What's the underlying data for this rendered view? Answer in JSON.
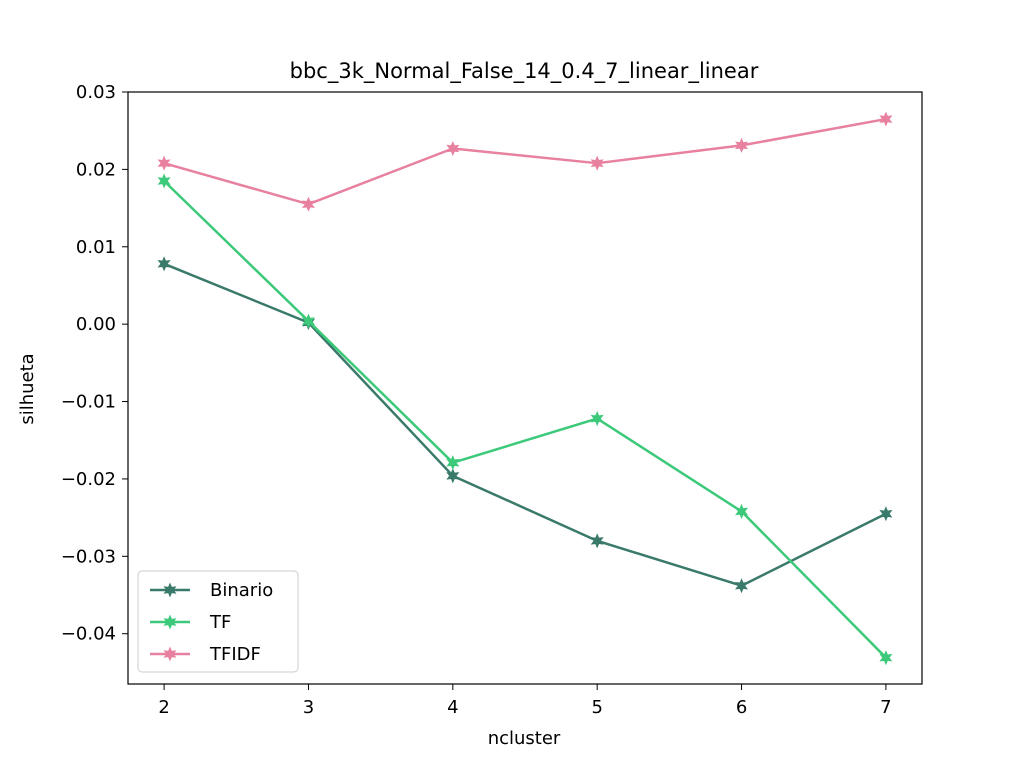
{
  "chart_data": {
    "type": "line",
    "title": "bbc_3k_Normal_False_14_0.4_7_linear_linear",
    "xlabel": "ncluster",
    "ylabel": "silhueta",
    "x": [
      2,
      3,
      4,
      5,
      6,
      7
    ],
    "xlim": [
      1.75,
      7.25
    ],
    "ylim": [
      -0.0465,
      0.03
    ],
    "xticks": [
      2,
      3,
      4,
      5,
      6,
      7
    ],
    "yticks": [
      0.03,
      0.02,
      0.01,
      0.0,
      -0.01,
      -0.02,
      -0.03,
      -0.04
    ],
    "ytick_labels": [
      "0.03",
      "0.02",
      "0.01",
      "0.00",
      "−0.01",
      "−0.02",
      "−0.03",
      "−0.04"
    ],
    "grid": false,
    "legend_position": "lower-left",
    "marker": "star",
    "series": [
      {
        "name": "Binario",
        "color": "#3a7a6a",
        "values": [
          0.0078,
          0.0002,
          -0.0196,
          -0.028,
          -0.0338,
          -0.0245
        ]
      },
      {
        "name": "TF",
        "color": "#3cc97a",
        "values": [
          0.0185,
          0.0004,
          -0.0179,
          -0.0122,
          -0.0242,
          -0.0431
        ]
      },
      {
        "name": "TFIDF",
        "color": "#e8809f",
        "values": [
          0.0208,
          0.0155,
          0.0227,
          0.0208,
          0.0231,
          0.0265
        ]
      }
    ]
  }
}
